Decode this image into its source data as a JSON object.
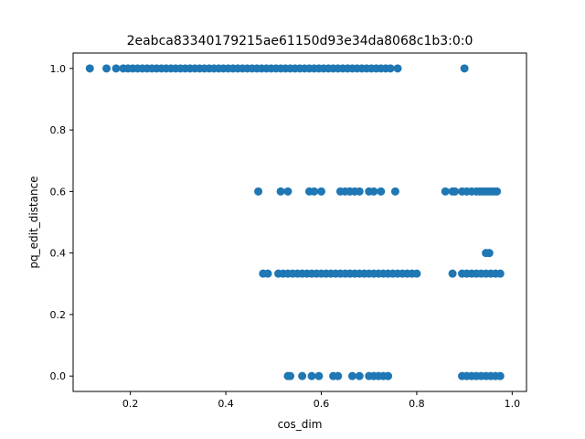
{
  "chart_data": {
    "type": "scatter",
    "title": "2eabca83340179215ae61150d93e34da8068c1b3:0:0",
    "xlabel": "cos_dim",
    "ylabel": "pq_edit_distance",
    "xlim": [
      0.08,
      1.03
    ],
    "ylim": [
      -0.05,
      1.05
    ],
    "xticks": [
      0.2,
      0.4,
      0.6,
      0.8,
      1.0
    ],
    "xtick_labels": [
      "0.2",
      "0.4",
      "0.6",
      "0.8",
      "1.0"
    ],
    "yticks": [
      0.0,
      0.2,
      0.4,
      0.6,
      0.8,
      1.0
    ],
    "ytick_labels": [
      "0.0",
      "0.2",
      "0.4",
      "0.6",
      "0.8",
      "1.0"
    ],
    "grid": false,
    "legend": "none",
    "marker_color": "#1f77b4",
    "series": [
      {
        "points": [
          [
            0.115,
            1.0
          ],
          [
            0.15,
            1.0
          ],
          [
            0.17,
            1.0
          ],
          [
            0.185,
            1.0
          ],
          [
            0.195,
            1.0
          ],
          [
            0.205,
            1.0
          ],
          [
            0.215,
            1.0
          ],
          [
            0.225,
            1.0
          ],
          [
            0.235,
            1.0
          ],
          [
            0.245,
            1.0
          ],
          [
            0.255,
            1.0
          ],
          [
            0.265,
            1.0
          ],
          [
            0.275,
            1.0
          ],
          [
            0.285,
            1.0
          ],
          [
            0.295,
            1.0
          ],
          [
            0.305,
            1.0
          ],
          [
            0.315,
            1.0
          ],
          [
            0.325,
            1.0
          ],
          [
            0.335,
            1.0
          ],
          [
            0.345,
            1.0
          ],
          [
            0.355,
            1.0
          ],
          [
            0.365,
            1.0
          ],
          [
            0.375,
            1.0
          ],
          [
            0.385,
            1.0
          ],
          [
            0.395,
            1.0
          ],
          [
            0.405,
            1.0
          ],
          [
            0.415,
            1.0
          ],
          [
            0.425,
            1.0
          ],
          [
            0.435,
            1.0
          ],
          [
            0.445,
            1.0
          ],
          [
            0.455,
            1.0
          ],
          [
            0.465,
            1.0
          ],
          [
            0.475,
            1.0
          ],
          [
            0.485,
            1.0
          ],
          [
            0.495,
            1.0
          ],
          [
            0.505,
            1.0
          ],
          [
            0.515,
            1.0
          ],
          [
            0.525,
            1.0
          ],
          [
            0.535,
            1.0
          ],
          [
            0.545,
            1.0
          ],
          [
            0.555,
            1.0
          ],
          [
            0.565,
            1.0
          ],
          [
            0.575,
            1.0
          ],
          [
            0.585,
            1.0
          ],
          [
            0.595,
            1.0
          ],
          [
            0.605,
            1.0
          ],
          [
            0.615,
            1.0
          ],
          [
            0.625,
            1.0
          ],
          [
            0.635,
            1.0
          ],
          [
            0.645,
            1.0
          ],
          [
            0.655,
            1.0
          ],
          [
            0.665,
            1.0
          ],
          [
            0.675,
            1.0
          ],
          [
            0.685,
            1.0
          ],
          [
            0.695,
            1.0
          ],
          [
            0.705,
            1.0
          ],
          [
            0.715,
            1.0
          ],
          [
            0.725,
            1.0
          ],
          [
            0.735,
            1.0
          ],
          [
            0.745,
            1.0
          ],
          [
            0.76,
            1.0
          ],
          [
            0.9,
            1.0
          ],
          [
            0.468,
            0.6
          ],
          [
            0.515,
            0.6
          ],
          [
            0.53,
            0.6
          ],
          [
            0.575,
            0.6
          ],
          [
            0.585,
            0.6
          ],
          [
            0.6,
            0.6
          ],
          [
            0.64,
            0.6
          ],
          [
            0.65,
            0.6
          ],
          [
            0.66,
            0.6
          ],
          [
            0.67,
            0.6
          ],
          [
            0.68,
            0.6
          ],
          [
            0.7,
            0.6
          ],
          [
            0.71,
            0.6
          ],
          [
            0.725,
            0.6
          ],
          [
            0.755,
            0.6
          ],
          [
            0.86,
            0.6
          ],
          [
            0.875,
            0.6
          ],
          [
            0.88,
            0.6
          ],
          [
            0.895,
            0.6
          ],
          [
            0.905,
            0.6
          ],
          [
            0.915,
            0.6
          ],
          [
            0.925,
            0.6
          ],
          [
            0.932,
            0.6
          ],
          [
            0.938,
            0.6
          ],
          [
            0.944,
            0.6
          ],
          [
            0.95,
            0.6
          ],
          [
            0.956,
            0.6
          ],
          [
            0.962,
            0.6
          ],
          [
            0.968,
            0.6
          ],
          [
            0.945,
            0.4
          ],
          [
            0.952,
            0.4
          ],
          [
            0.478,
            0.333
          ],
          [
            0.488,
            0.333
          ],
          [
            0.51,
            0.333
          ],
          [
            0.52,
            0.333
          ],
          [
            0.53,
            0.333
          ],
          [
            0.54,
            0.333
          ],
          [
            0.55,
            0.333
          ],
          [
            0.56,
            0.333
          ],
          [
            0.57,
            0.333
          ],
          [
            0.58,
            0.333
          ],
          [
            0.59,
            0.333
          ],
          [
            0.6,
            0.333
          ],
          [
            0.61,
            0.333
          ],
          [
            0.62,
            0.333
          ],
          [
            0.63,
            0.333
          ],
          [
            0.64,
            0.333
          ],
          [
            0.65,
            0.333
          ],
          [
            0.66,
            0.333
          ],
          [
            0.67,
            0.333
          ],
          [
            0.68,
            0.333
          ],
          [
            0.69,
            0.333
          ],
          [
            0.7,
            0.333
          ],
          [
            0.71,
            0.333
          ],
          [
            0.72,
            0.333
          ],
          [
            0.73,
            0.333
          ],
          [
            0.74,
            0.333
          ],
          [
            0.75,
            0.333
          ],
          [
            0.76,
            0.333
          ],
          [
            0.77,
            0.333
          ],
          [
            0.78,
            0.333
          ],
          [
            0.79,
            0.333
          ],
          [
            0.8,
            0.333
          ],
          [
            0.875,
            0.333
          ],
          [
            0.895,
            0.333
          ],
          [
            0.905,
            0.333
          ],
          [
            0.915,
            0.333
          ],
          [
            0.925,
            0.333
          ],
          [
            0.935,
            0.333
          ],
          [
            0.945,
            0.333
          ],
          [
            0.955,
            0.333
          ],
          [
            0.965,
            0.333
          ],
          [
            0.975,
            0.333
          ],
          [
            0.53,
            0.0
          ],
          [
            0.535,
            0.0
          ],
          [
            0.56,
            0.0
          ],
          [
            0.58,
            0.0
          ],
          [
            0.595,
            0.0
          ],
          [
            0.625,
            0.0
          ],
          [
            0.635,
            0.0
          ],
          [
            0.665,
            0.0
          ],
          [
            0.68,
            0.0
          ],
          [
            0.7,
            0.0
          ],
          [
            0.71,
            0.0
          ],
          [
            0.72,
            0.0
          ],
          [
            0.73,
            0.0
          ],
          [
            0.74,
            0.0
          ],
          [
            0.895,
            0.0
          ],
          [
            0.905,
            0.0
          ],
          [
            0.915,
            0.0
          ],
          [
            0.925,
            0.0
          ],
          [
            0.935,
            0.0
          ],
          [
            0.945,
            0.0
          ],
          [
            0.955,
            0.0
          ],
          [
            0.965,
            0.0
          ],
          [
            0.975,
            0.0
          ]
        ]
      }
    ]
  }
}
